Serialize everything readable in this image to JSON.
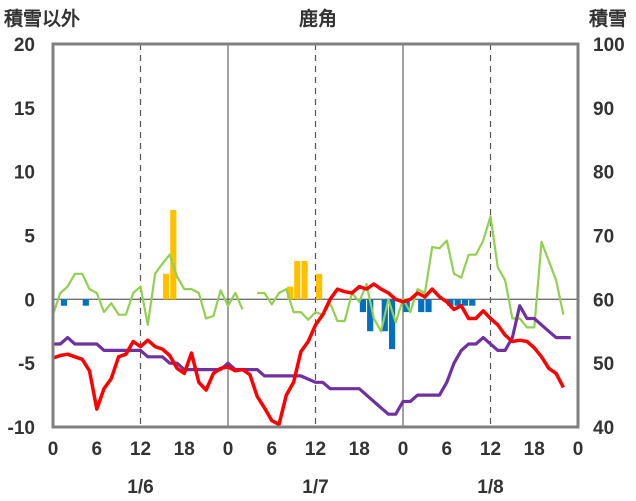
{
  "chart_data": {
    "type": "bar+line",
    "title": "鹿角",
    "left_axis_title": "積雪以外",
    "right_axis_title": "積雪",
    "left_axis": {
      "min": -10,
      "max": 20,
      "ticks": [
        20,
        15,
        10,
        5,
        0,
        -5,
        -10
      ]
    },
    "right_axis": {
      "min": 40,
      "max": 100,
      "ticks": [
        100,
        90,
        80,
        70,
        60,
        50,
        40
      ]
    },
    "x_range": [
      0,
      72
    ],
    "x_ticks": [
      {
        "x": 0,
        "label": "0"
      },
      {
        "x": 6,
        "label": "6"
      },
      {
        "x": 12,
        "label": "12"
      },
      {
        "x": 18,
        "label": "18"
      },
      {
        "x": 24,
        "label": "0"
      },
      {
        "x": 30,
        "label": "6"
      },
      {
        "x": 36,
        "label": "12"
      },
      {
        "x": 42,
        "label": "18"
      },
      {
        "x": 48,
        "label": "0"
      },
      {
        "x": 54,
        "label": "6"
      },
      {
        "x": 60,
        "label": "12"
      },
      {
        "x": 66,
        "label": "18"
      },
      {
        "x": 72,
        "label": "0"
      }
    ],
    "day_labels": [
      {
        "x": 12,
        "label": "1/6"
      },
      {
        "x": 36,
        "label": "1/7"
      },
      {
        "x": 60,
        "label": "1/8"
      }
    ],
    "grid": {
      "dashed_x": [
        12,
        36,
        60
      ],
      "solid_x": [
        24,
        48
      ]
    },
    "colors": {
      "orange_bar": "#FFC000",
      "blue_bar": "#0070C0",
      "red_line": "#FF0000",
      "green_line": "#92D050",
      "purple_line": "#7030A0",
      "frame": "#808080"
    },
    "orange_bars": [
      {
        "x": 15.5,
        "value": 2
      },
      {
        "x": 16.5,
        "value": 7
      },
      {
        "x": 32.5,
        "value": 1
      },
      {
        "x": 33.5,
        "value": 3
      },
      {
        "x": 34.5,
        "value": 3
      },
      {
        "x": 36.5,
        "value": 2
      }
    ],
    "blue_bars": [
      {
        "x": 1.5,
        "value": -0.5
      },
      {
        "x": 4.5,
        "value": -0.5
      },
      {
        "x": 42.5,
        "value": -1
      },
      {
        "x": 43.5,
        "value": -2.5
      },
      {
        "x": 45.5,
        "value": -2.5
      },
      {
        "x": 46.5,
        "value": -3.9
      },
      {
        "x": 48.5,
        "value": -1
      },
      {
        "x": 50.5,
        "value": -1
      },
      {
        "x": 51.5,
        "value": -1
      },
      {
        "x": 54.5,
        "value": -0.5
      },
      {
        "x": 55.5,
        "value": -0.5
      },
      {
        "x": 56.5,
        "value": -0.5
      },
      {
        "x": 57.5,
        "value": -0.5
      }
    ],
    "red_line": [
      [
        0,
        -4.6
      ],
      [
        1,
        -4.4
      ],
      [
        2,
        -4.3
      ],
      [
        3,
        -4.5
      ],
      [
        4,
        -4.7
      ],
      [
        5,
        -5.6
      ],
      [
        6,
        -8.6
      ],
      [
        7,
        -7
      ],
      [
        8,
        -6.2
      ],
      [
        9,
        -4.5
      ],
      [
        10,
        -4.3
      ],
      [
        11,
        -3.3
      ],
      [
        12,
        -3.7
      ],
      [
        13,
        -3.2
      ],
      [
        14,
        -3.7
      ],
      [
        15,
        -3.9
      ],
      [
        16,
        -4.4
      ],
      [
        17,
        -5.4
      ],
      [
        18,
        -5.8
      ],
      [
        19,
        -4.2
      ],
      [
        20,
        -6.5
      ],
      [
        21,
        -7.1
      ],
      [
        22,
        -5.8
      ],
      [
        23,
        -5.4
      ],
      [
        24,
        -5.3
      ],
      [
        25,
        -5.6
      ],
      [
        26,
        -5.5
      ],
      [
        27,
        -5.9
      ],
      [
        28,
        -7.6
      ],
      [
        29,
        -8.5
      ],
      [
        30,
        -9.5
      ],
      [
        31,
        -9.8
      ],
      [
        32,
        -7.5
      ],
      [
        33,
        -6.5
      ],
      [
        34,
        -4.1
      ],
      [
        35,
        -3.3
      ],
      [
        36,
        -2
      ],
      [
        37,
        -1.2
      ],
      [
        38,
        0
      ],
      [
        39,
        0.8
      ],
      [
        40,
        0.6
      ],
      [
        41,
        0.5
      ],
      [
        42,
        1
      ],
      [
        43,
        0.8
      ],
      [
        44,
        1.2
      ],
      [
        45,
        0.8
      ],
      [
        46,
        0.5
      ],
      [
        47,
        0
      ],
      [
        48,
        -0.2
      ],
      [
        49,
        0
      ],
      [
        50,
        0.5
      ],
      [
        51,
        0.2
      ],
      [
        52,
        0.8
      ],
      [
        53,
        0.2
      ],
      [
        54,
        -0.2
      ],
      [
        55,
        -0.8
      ],
      [
        56,
        -0.5
      ],
      [
        57,
        -1.5
      ],
      [
        58,
        -1.5
      ],
      [
        59,
        -0.9
      ],
      [
        60,
        -1.5
      ],
      [
        61,
        -2
      ],
      [
        62,
        -2.8
      ],
      [
        63,
        -3.3
      ],
      [
        64,
        -3.2
      ],
      [
        65,
        -3.3
      ],
      [
        66,
        -3.8
      ],
      [
        67,
        -4.5
      ],
      [
        68,
        -5.4
      ],
      [
        69,
        -5.8
      ],
      [
        70,
        -6.9
      ]
    ],
    "green_line": [
      [
        [
          0,
          -1.2
        ],
        [
          1,
          0.5
        ],
        [
          2,
          1
        ],
        [
          3,
          2
        ],
        [
          4,
          2
        ],
        [
          5,
          0.8
        ],
        [
          6,
          0.5
        ],
        [
          7,
          -1
        ],
        [
          8,
          -0.3
        ],
        [
          9,
          -1.2
        ],
        [
          10,
          -1.2
        ],
        [
          11,
          0.5
        ],
        [
          12,
          1
        ],
        [
          13,
          -2
        ],
        [
          14,
          2
        ],
        [
          15,
          2.8
        ],
        [
          16,
          3.5
        ],
        [
          17,
          1.8
        ],
        [
          18,
          0.8
        ],
        [
          19,
          0.8
        ],
        [
          20,
          0.5
        ],
        [
          21,
          -1.5
        ],
        [
          22,
          -1.3
        ],
        [
          23,
          0.7
        ],
        [
          24,
          -0.5
        ],
        [
          25,
          0.5
        ],
        [
          26,
          -0.8
        ]
      ],
      [
        [
          28,
          0.5
        ],
        [
          29,
          0.5
        ],
        [
          30,
          -0.4
        ],
        [
          31,
          0.5
        ],
        [
          32,
          0.8
        ],
        [
          33,
          -1
        ],
        [
          34,
          -1
        ],
        [
          35,
          -1.6
        ],
        [
          36,
          -1
        ],
        [
          37,
          -1.2
        ],
        [
          38,
          -0.3
        ],
        [
          39,
          -1.7
        ],
        [
          40,
          -1.7
        ],
        [
          41,
          0.5
        ],
        [
          42,
          -0.2
        ],
        [
          43,
          1.2
        ],
        [
          44,
          -1.5
        ],
        [
          45,
          -2.5
        ],
        [
          46,
          0
        ],
        [
          47,
          -1.8
        ],
        [
          48,
          0
        ],
        [
          49,
          -1
        ],
        [
          50,
          0.8
        ],
        [
          51,
          0.5
        ],
        [
          52,
          4.1
        ],
        [
          53,
          4
        ],
        [
          54,
          4.6
        ],
        [
          55,
          2
        ],
        [
          56,
          1.7
        ],
        [
          57,
          3.5
        ],
        [
          58,
          3.5
        ],
        [
          59,
          4.6
        ],
        [
          60,
          6.5
        ],
        [
          61,
          2.5
        ],
        [
          62,
          1.5
        ],
        [
          63,
          -1.5
        ],
        [
          64,
          -1.5
        ],
        [
          65,
          -2.2
        ],
        [
          66,
          -2.2
        ],
        [
          67,
          4.5
        ],
        [
          68,
          3
        ],
        [
          69,
          1.5
        ],
        [
          70,
          -1.2
        ]
      ]
    ],
    "purple_line": [
      [
        0,
        53
      ],
      [
        1,
        53
      ],
      [
        2,
        54
      ],
      [
        3,
        53
      ],
      [
        4,
        53
      ],
      [
        5,
        53
      ],
      [
        6,
        53
      ],
      [
        7,
        52
      ],
      [
        8,
        52
      ],
      [
        9,
        52
      ],
      [
        10,
        52
      ],
      [
        11,
        52
      ],
      [
        12,
        52
      ],
      [
        13,
        51
      ],
      [
        14,
        51
      ],
      [
        15,
        51
      ],
      [
        16,
        50
      ],
      [
        17,
        50
      ],
      [
        18,
        49
      ],
      [
        19,
        49
      ],
      [
        20,
        49
      ],
      [
        21,
        49
      ],
      [
        22,
        49
      ],
      [
        23,
        49
      ],
      [
        24,
        50
      ],
      [
        25,
        49
      ],
      [
        26,
        49
      ],
      [
        27,
        49
      ],
      [
        28,
        49
      ],
      [
        29,
        48
      ],
      [
        30,
        48
      ],
      [
        31,
        48
      ],
      [
        32,
        48
      ],
      [
        33,
        48
      ],
      [
        34,
        48
      ],
      [
        35,
        47.5
      ],
      [
        36,
        47
      ],
      [
        37,
        47
      ],
      [
        38,
        46
      ],
      [
        39,
        46
      ],
      [
        40,
        46
      ],
      [
        41,
        46
      ],
      [
        42,
        46
      ],
      [
        43,
        45
      ],
      [
        44,
        44
      ],
      [
        45,
        43
      ],
      [
        46,
        42
      ],
      [
        47,
        42
      ],
      [
        48,
        44
      ],
      [
        49,
        44
      ],
      [
        50,
        45
      ],
      [
        51,
        45
      ],
      [
        52,
        45
      ],
      [
        53,
        45
      ],
      [
        54,
        47
      ],
      [
        55,
        50
      ],
      [
        56,
        52
      ],
      [
        57,
        53
      ],
      [
        58,
        53
      ],
      [
        59,
        54
      ],
      [
        60,
        53
      ],
      [
        61,
        52
      ],
      [
        62,
        52
      ],
      [
        63,
        54
      ],
      [
        64,
        59
      ],
      [
        65,
        57
      ],
      [
        66,
        57
      ],
      [
        67,
        56
      ],
      [
        68,
        55
      ],
      [
        69,
        54
      ],
      [
        70,
        54
      ],
      [
        71,
        54
      ]
    ]
  }
}
